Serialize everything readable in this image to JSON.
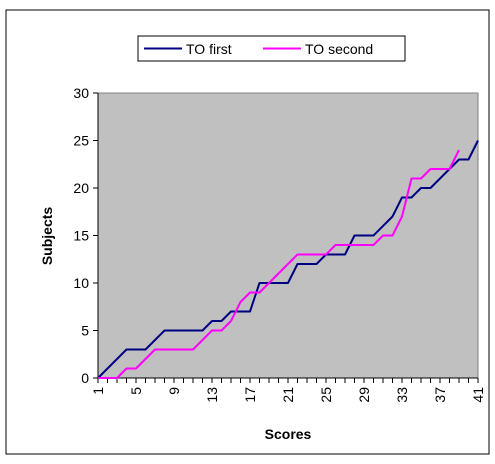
{
  "chart_data": {
    "type": "line",
    "xlabel": "Scores",
    "ylabel": "Subjects",
    "ylim": [
      0,
      30
    ],
    "yticks": [
      0,
      5,
      10,
      15,
      20,
      25,
      30
    ],
    "xlim": [
      1,
      41
    ],
    "xticks": [
      1,
      5,
      9,
      13,
      17,
      21,
      25,
      29,
      33,
      37,
      41
    ],
    "grid": false,
    "legend": "top-center",
    "plot_background": "#c0c0c0",
    "series": [
      {
        "name": "TO first",
        "color": "#000080",
        "x": [
          1,
          2,
          3,
          4,
          5,
          6,
          7,
          8,
          9,
          10,
          11,
          12,
          13,
          14,
          15,
          16,
          17,
          18,
          19,
          20,
          21,
          22,
          23,
          24,
          25,
          26,
          27,
          28,
          29,
          30,
          31,
          32,
          33,
          34,
          35,
          36,
          37,
          38,
          39,
          40,
          41
        ],
        "values": [
          0,
          1,
          2,
          3,
          3,
          3,
          4,
          5,
          5,
          5,
          5,
          5,
          6,
          6,
          7,
          7,
          7,
          10,
          10,
          10,
          10,
          12,
          12,
          12,
          13,
          13,
          13,
          15,
          15,
          15,
          16,
          17,
          19,
          19,
          20,
          20,
          21,
          22,
          23,
          23,
          25
        ]
      },
      {
        "name": "TO second",
        "color": "#ff00ff",
        "x": [
          1,
          2,
          3,
          4,
          5,
          6,
          7,
          8,
          9,
          10,
          11,
          12,
          13,
          14,
          15,
          16,
          17,
          18,
          19,
          20,
          21,
          22,
          23,
          24,
          25,
          26,
          27,
          28,
          29,
          30,
          31,
          32,
          33,
          34,
          35,
          36,
          37,
          38,
          39
        ],
        "values": [
          0,
          0,
          0,
          1,
          1,
          2,
          3,
          3,
          3,
          3,
          3,
          4,
          5,
          5,
          6,
          8,
          9,
          9,
          10,
          11,
          12,
          13,
          13,
          13,
          13,
          14,
          14,
          14,
          14,
          14,
          15,
          15,
          17,
          21,
          21,
          22,
          22,
          22,
          24
        ]
      }
    ]
  }
}
